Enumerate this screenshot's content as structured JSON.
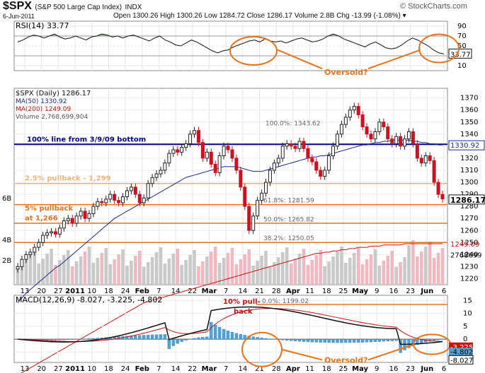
{
  "header": {
    "symbol": "$SPX",
    "name": "(S&P 500 Large Cap Index)",
    "exchange": "INDX",
    "date": "6-Jun-2011",
    "ohlc_text": "Open 1300.26  High 1300.26  Low 1284.72  Close 1286.17  Volume 2.8B  Chg -13.99 (-1.08%) ▾",
    "brand": "© StockCharts.com"
  },
  "chart_data": {
    "type": "stock",
    "x_labels": [
      "13",
      "20",
      "27",
      "2011",
      "10",
      "18",
      "24",
      "Feb",
      "7",
      "14",
      "22",
      "Mar",
      "7",
      "14",
      "21",
      "28",
      "Apr",
      "11",
      "18",
      "25",
      "May",
      "9",
      "16",
      "23",
      "Jun",
      "6"
    ],
    "rsi": {
      "label": "RSI(14) 33.77",
      "ticks": [
        90,
        70,
        50,
        30,
        10
      ],
      "current": "33.77",
      "values": [
        58,
        62,
        68,
        72,
        70,
        66,
        70,
        74,
        68,
        64,
        66,
        70,
        66,
        62,
        68,
        70,
        74,
        72,
        68,
        70,
        66,
        70,
        72,
        68,
        64,
        60,
        66,
        70,
        62,
        58,
        52,
        50,
        56,
        62,
        58,
        52,
        46,
        40,
        36,
        40,
        42,
        48,
        52,
        56,
        60,
        62,
        58,
        64,
        60,
        58,
        60,
        56,
        60,
        64,
        66,
        62,
        58,
        60,
        64,
        70,
        74,
        70,
        64,
        60,
        56,
        52,
        48,
        54,
        58,
        52,
        46,
        44,
        46,
        52,
        60,
        66,
        62,
        56,
        50,
        42,
        36,
        33.77
      ],
      "note": "Oversold?"
    },
    "price": {
      "legend": [
        "$SPX (Daily) 1286.17",
        "MA(50) 1330.92",
        "MA(200) 1249.09",
        "Volume 2,768,699,904"
      ],
      "ylim": [
        1215,
        1378
      ],
      "ticks": [
        1220,
        1230,
        1240,
        1250,
        1260,
        1270,
        1280,
        1290,
        1300,
        1310,
        1320,
        1330,
        1340,
        1350,
        1360,
        1370
      ],
      "closes": [
        1230,
        1236,
        1240,
        1242,
        1246,
        1250,
        1256,
        1258,
        1259,
        1257,
        1262,
        1268,
        1270,
        1266,
        1272,
        1276,
        1270,
        1274,
        1280,
        1284,
        1283,
        1286,
        1290,
        1285,
        1283,
        1288,
        1293,
        1296,
        1290,
        1283,
        1287,
        1299,
        1304,
        1307,
        1310,
        1316,
        1324,
        1327,
        1325,
        1329,
        1332,
        1340,
        1343,
        1333,
        1320,
        1325,
        1315,
        1308,
        1322,
        1330,
        1327,
        1320,
        1310,
        1296,
        1280,
        1260,
        1272,
        1285,
        1291,
        1300,
        1310,
        1316,
        1320,
        1330,
        1332,
        1330,
        1328,
        1334,
        1328,
        1320,
        1317,
        1310,
        1305,
        1310,
        1322,
        1330,
        1340,
        1348,
        1354,
        1360,
        1363,
        1356,
        1346,
        1340,
        1336,
        1342,
        1350,
        1346,
        1336,
        1332,
        1338,
        1330,
        1336,
        1342,
        1332,
        1320,
        1316,
        1322,
        1318,
        1300,
        1290,
        1286.17
      ],
      "ma50": [
        1200,
        1204,
        1208,
        1211,
        1214,
        1217,
        1220,
        1223,
        1226,
        1229,
        1231,
        1234,
        1237,
        1240,
        1243,
        1246,
        1249,
        1252,
        1255,
        1258,
        1261,
        1264,
        1267,
        1270,
        1272,
        1274,
        1276,
        1278,
        1280,
        1282,
        1284,
        1286,
        1288,
        1290,
        1292,
        1294,
        1296,
        1298,
        1300,
        1302,
        1304,
        1305,
        1306,
        1307,
        1308,
        1309,
        1310,
        1311,
        1312,
        1313,
        1313,
        1313,
        1313,
        1312,
        1311,
        1310,
        1309,
        1309,
        1309,
        1310,
        1311,
        1312,
        1313,
        1314,
        1315,
        1316,
        1317,
        1318,
        1319,
        1320,
        1321,
        1321,
        1322,
        1322,
        1323,
        1324,
        1325,
        1326,
        1327,
        1328,
        1329,
        1330,
        1331,
        1331,
        1332,
        1333,
        1333,
        1334,
        1334,
        1335,
        1335,
        1335,
        1335,
        1335,
        1334,
        1334,
        1333,
        1333,
        1332,
        1332,
        1331,
        1330.92
      ],
      "ma200": [
        1140,
        1142,
        1144,
        1146,
        1148,
        1150,
        1152,
        1154,
        1156,
        1158,
        1160,
        1162,
        1164,
        1166,
        1168,
        1170,
        1172,
        1174,
        1176,
        1178,
        1180,
        1182,
        1184,
        1186,
        1188,
        1190,
        1192,
        1194,
        1196,
        1198,
        1200,
        1201,
        1202,
        1203,
        1204,
        1205,
        1206,
        1207,
        1208,
        1209,
        1210,
        1211,
        1212,
        1213,
        1214,
        1215,
        1216,
        1217,
        1218,
        1219,
        1220,
        1221,
        1222,
        1223,
        1224,
        1225,
        1226,
        1227,
        1228,
        1229,
        1230,
        1231,
        1232,
        1233,
        1234,
        1235,
        1236,
        1237,
        1238,
        1239,
        1240,
        1241,
        1241,
        1242,
        1242,
        1243,
        1243,
        1244,
        1244,
        1245,
        1245,
        1246,
        1246,
        1246,
        1247,
        1247,
        1247,
        1248,
        1248,
        1248,
        1248,
        1248,
        1249,
        1249,
        1249,
        1249,
        1249,
        1249,
        1249,
        1249,
        1249,
        1249.09
      ],
      "current": "1286.17",
      "ma50_current": "1330.92",
      "ma200_current": "1249.09",
      "volume_current": "2768699",
      "volume_ticks": [
        "6B",
        "4B",
        "2B"
      ],
      "hlines": [
        {
          "label": "100% line from 3/9/09 bottom",
          "y": 1331.5,
          "color": "#00008b"
        },
        {
          "label": "2.5% pullback - 1,299",
          "y": 1299,
          "color": "#f4b27a"
        },
        {
          "label": "5% pullback",
          "label2": "at 1,266",
          "y": 1266,
          "color": "#e8731a"
        },
        {
          "label": "",
          "y": 1281.5,
          "color": "#e8731a"
        },
        {
          "label": "",
          "y": 1250,
          "color": "#e8731a"
        }
      ],
      "fib_labels": [
        "100.0%: 1343.62",
        "61.8%: 1281.59",
        "50.0%: 1265.82",
        "38.2%: 1250.05"
      ]
    },
    "macd": {
      "label": "MACD(12,26,9) -8.027, -3.225, -4.802",
      "ticks": [
        15,
        10,
        5,
        0,
        -5
      ],
      "pullback_note": "10% pull-",
      "pullback_note2": "back",
      "fib_label": "0.0%: 1199.02",
      "current_signal": "-3.225",
      "current_hist": "-4.802",
      "current_macd": "-8.027",
      "note": "Oversold?"
    }
  }
}
